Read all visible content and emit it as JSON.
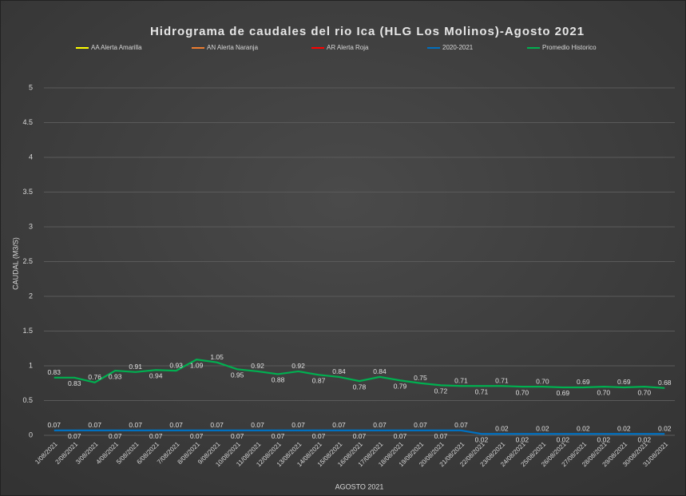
{
  "chart_data": {
    "type": "line",
    "title": "Hidrograma de caudales del rio Ica (HLG Los Molinos)-Agosto 2021",
    "x_label": "AGOSTO 2021",
    "y_label": "CAUDAL (M3/S)",
    "categories": [
      "1/08/2021",
      "2/08/2021",
      "3/08/2021",
      "4/08/2021",
      "5/08/2021",
      "6/08/2021",
      "7/08/2021",
      "8/08/2021",
      "9/08/2021",
      "10/08/2021",
      "11/08/2021",
      "12/08/2021",
      "13/08/2021",
      "14/08/2021",
      "15/08/2021",
      "16/08/2021",
      "17/08/2021",
      "18/08/2021",
      "19/08/2021",
      "20/08/2021",
      "21/08/2021",
      "22/08/2021",
      "23/08/2021",
      "24/08/2021",
      "25/08/2021",
      "26/08/2021",
      "27/08/2021",
      "28/08/2021",
      "29/08/2021",
      "30/08/2021",
      "31/08/2021"
    ],
    "series": [
      {
        "name": "AA Alerta Amarilla",
        "color": "#ffff00",
        "values": [
          null,
          null,
          null,
          null,
          null,
          null,
          null,
          null,
          null,
          null,
          null,
          null,
          null,
          null,
          null,
          null,
          null,
          null,
          null,
          null,
          null,
          null,
          null,
          null,
          null,
          null,
          null,
          null,
          null,
          null,
          null
        ]
      },
      {
        "name": "AN Alerta Naranja",
        "color": "#ed7d31",
        "values": [
          null,
          null,
          null,
          null,
          null,
          null,
          null,
          null,
          null,
          null,
          null,
          null,
          null,
          null,
          null,
          null,
          null,
          null,
          null,
          null,
          null,
          null,
          null,
          null,
          null,
          null,
          null,
          null,
          null,
          null,
          null
        ]
      },
      {
        "name": "AR Alerta Roja",
        "color": "#ff0000",
        "values": [
          null,
          null,
          null,
          null,
          null,
          null,
          null,
          null,
          null,
          null,
          null,
          null,
          null,
          null,
          null,
          null,
          null,
          null,
          null,
          null,
          null,
          null,
          null,
          null,
          null,
          null,
          null,
          null,
          null,
          null,
          null
        ]
      },
      {
        "name": "2020-2021",
        "color": "#0070c0",
        "values": [
          0.07,
          0.07,
          0.07,
          0.07,
          0.07,
          0.07,
          0.07,
          0.07,
          0.07,
          0.07,
          0.07,
          0.07,
          0.07,
          0.07,
          0.07,
          0.07,
          0.07,
          0.07,
          0.07,
          0.07,
          0.07,
          0.02,
          0.02,
          0.02,
          0.02,
          0.02,
          0.02,
          0.02,
          0.02,
          0.02,
          0.02
        ]
      },
      {
        "name": "Promedio Historico",
        "color": "#00b050",
        "values": [
          0.83,
          0.83,
          0.76,
          0.93,
          0.91,
          0.94,
          0.93,
          1.09,
          1.05,
          0.95,
          0.92,
          0.88,
          0.92,
          0.87,
          0.84,
          0.78,
          0.84,
          0.79,
          0.75,
          0.72,
          0.71,
          0.71,
          0.71,
          0.7,
          0.7,
          0.69,
          0.69,
          0.7,
          0.69,
          0.7,
          0.68
        ],
        "value_labels": [
          "0.83",
          "0.83",
          "0.76",
          "0.93",
          "0.91",
          "0.94",
          "0.93",
          "1.09",
          "1.05",
          "0.95",
          "0.92",
          "0.88",
          "0.92",
          "0.87",
          "0.84",
          "0.78",
          "0.84",
          "0.79",
          "0.75",
          "0.72",
          "0.71",
          "0.71",
          "0.71",
          "0.70",
          "0.70",
          "0.69",
          "0.69",
          "0.70",
          "0.69",
          "0.70",
          "0.68"
        ]
      }
    ],
    "ylim": [
      0,
      5
    ],
    "yticks": [
      0,
      0.5,
      1,
      1.5,
      2,
      2.5,
      3,
      3.5,
      4,
      4.5,
      5
    ],
    "grid": true
  }
}
